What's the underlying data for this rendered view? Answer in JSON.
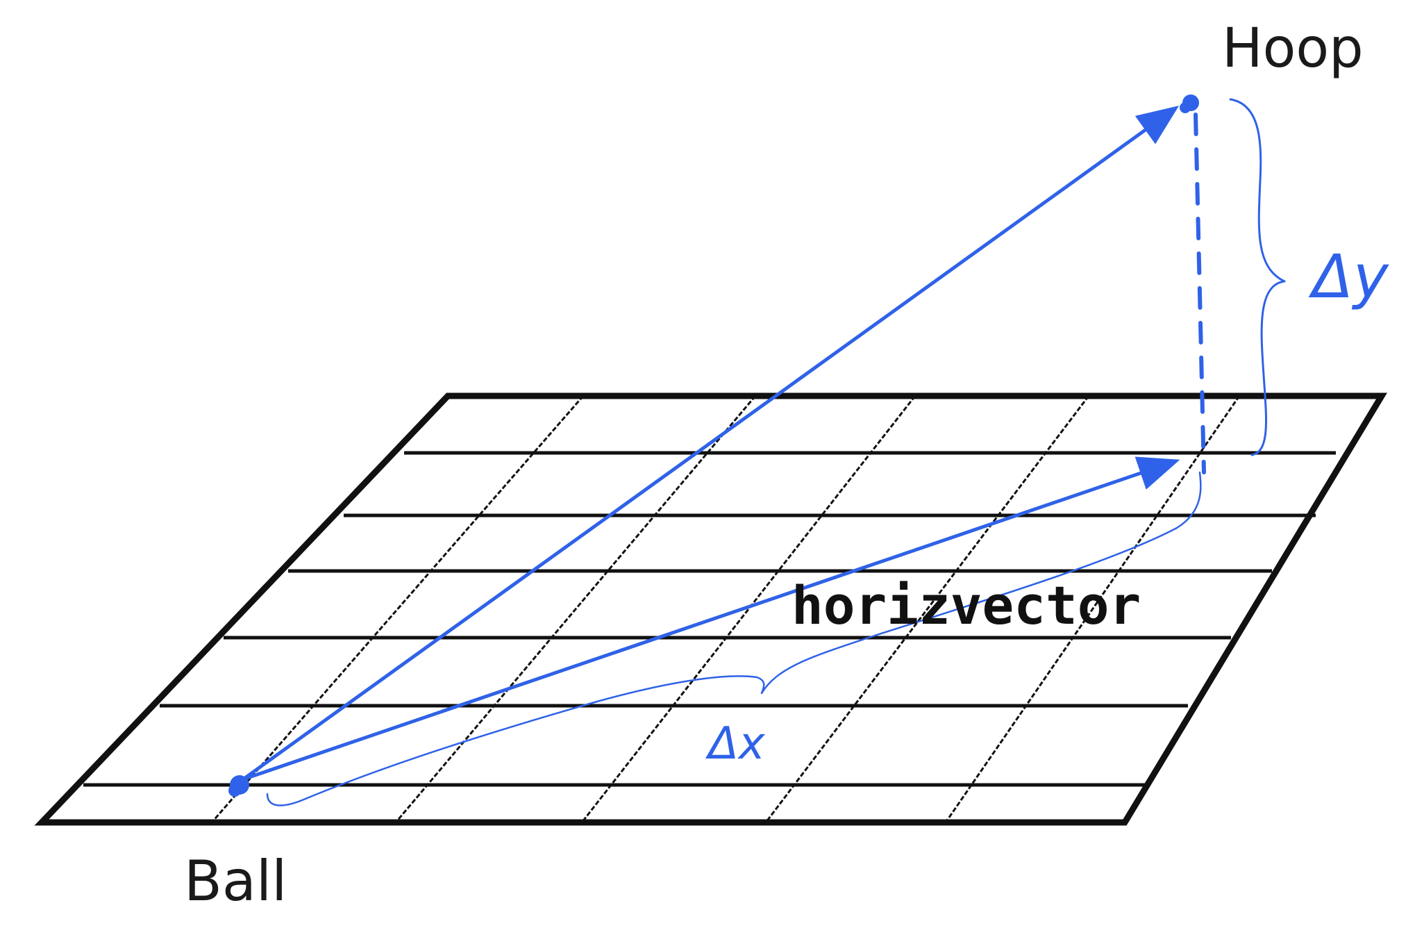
{
  "labels": {
    "hoop": "Hoop",
    "ball": "Ball",
    "horizontal_vector": "horizvector",
    "delta_x": "Δx",
    "delta_y": "Δy"
  },
  "colors": {
    "ink": "#111111",
    "accent_blue": "#2f62e8",
    "background": "#ffffff"
  }
}
